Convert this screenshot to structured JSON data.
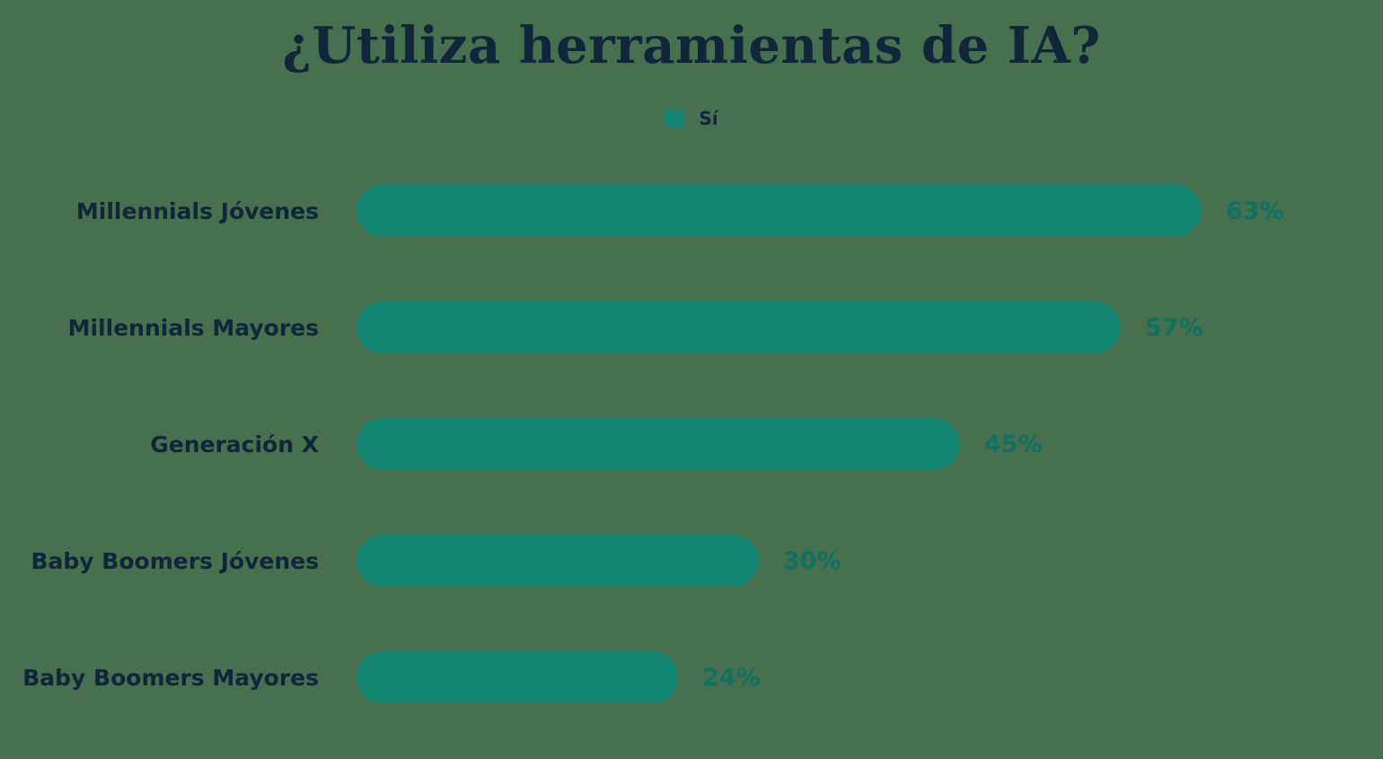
{
  "page": {
    "background_color": "#47704E"
  },
  "header": {
    "title": "¿Utiliza herramientas de IA?",
    "title_color": "#10263A"
  },
  "legend": {
    "position": "top-center",
    "items": [
      {
        "label": "Sí",
        "color": "#118570"
      }
    ]
  },
  "chart_data": {
    "type": "bar",
    "orientation": "horizontal",
    "title": "¿Utiliza herramientas de IA?",
    "categories": [
      "Millennials Jóvenes",
      "Millennials Mayores",
      "Generación X",
      "Baby Boomers Jóvenes",
      "Baby Boomers Mayores"
    ],
    "series": [
      {
        "name": "Sí",
        "values": [
          63,
          57,
          45,
          30,
          24
        ]
      }
    ],
    "value_suffix": "%",
    "xlabel": "",
    "ylabel": "",
    "xlim": [
      0,
      100
    ],
    "grid": false,
    "legend_position": "top",
    "bar_color": "#118570",
    "value_label_color": "#0D7261",
    "category_label_color": "#10263A",
    "background_color": "#47704E"
  }
}
